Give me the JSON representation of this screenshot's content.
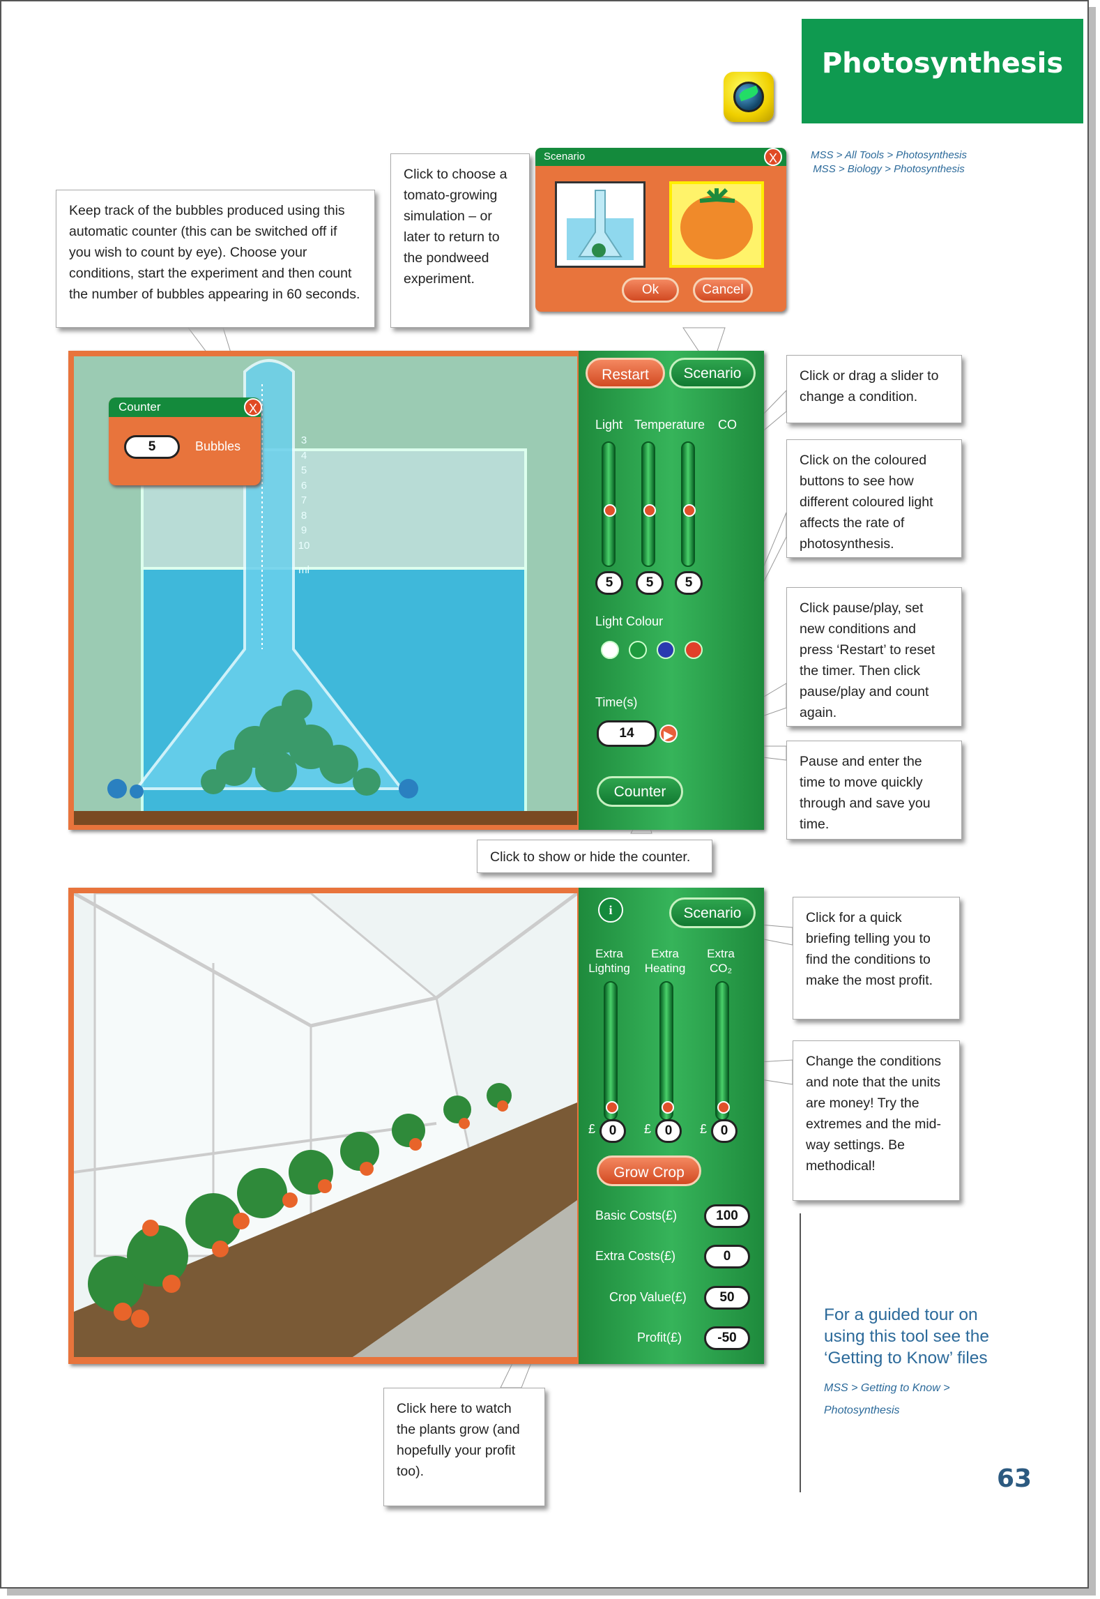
{
  "header": {
    "title": "Photosynthesis",
    "breadcrumb_1": "MSS > All Tools > Photosynthesis",
    "breadcrumb_2": "MSS > Biology > Photosynthesis"
  },
  "callouts": {
    "counter_info": "Keep track of the bubbles produced using this automatic counter (this can be switched off if you wish to count by eye). Choose your conditions, start the experiment and then count the number of bubbles appearing in 60 seconds.",
    "scenario_info": "Click to choose a tomato-growing simulation – or later to return to the pondweed experiment.",
    "slider_info": "Click or drag a slider to change a condition.",
    "colour_info": "Click on the coloured buttons to see how different coloured light affects the rate of photosynthesis.",
    "pause_info": "Click pause/play, set new conditions and press ‘Restart’ to reset the timer. Then click pause/play and count again.",
    "time_info": "Pause and enter the time to move quickly through and save you time.",
    "counter_toggle_info": "Click to show or hide the counter.",
    "briefing_info": "Click for a quick briefing telling you to find the conditions to make the most profit.",
    "conditions_info": "Change the conditions and note that the units are money! Try the extremes and the mid-way settings. Be methodical!",
    "grow_info": "Click here to watch the plants grow (and hopefully your profit too)."
  },
  "scenario_dialog": {
    "title": "Scenario",
    "ok_label": "Ok",
    "cancel_label": "Cancel",
    "close_label": "X"
  },
  "counter_widget": {
    "title": "Counter",
    "value": "5",
    "unit_label": "Bubbles",
    "close_label": "X"
  },
  "pondweed_sim": {
    "restart_label": "Restart",
    "scenario_label": "Scenario",
    "light_label": "Light",
    "temperature_label": "Temperature",
    "co2_label": "CO",
    "light_value": "5",
    "temperature_value": "5",
    "co2_value": "5",
    "light_colour_label": "Light Colour",
    "time_label": "Time(s)",
    "time_value": "14",
    "counter_label": "Counter",
    "tube_scale": [
      "3",
      "4",
      "5",
      "6",
      "7",
      "8",
      "9",
      "10"
    ],
    "tube_unit": "ml",
    "light_colours": [
      "#ffffff",
      "#1e9a3e",
      "#2a3ab0",
      "#e0402a"
    ]
  },
  "tomato_sim": {
    "info_label": "i",
    "scenario_label": "Scenario",
    "extra_lighting_label": "Extra\nLighting",
    "extra_heating_label": "Extra\nHeating",
    "extra_co2_label": "Extra\nCO₂",
    "currency": "£",
    "lighting_value": "0",
    "heating_value": "0",
    "co2_value": "0",
    "grow_label": "Grow Crop",
    "basic_costs_label": "Basic Costs(£)",
    "basic_costs_value": "100",
    "extra_costs_label": "Extra Costs(£)",
    "extra_costs_value": "0",
    "crop_value_label": "Crop Value(£)",
    "crop_value_value": "50",
    "profit_label": "Profit(£)",
    "profit_value": "-50"
  },
  "footer": {
    "guided_tour": "For a guided tour on using this tool see the ‘Getting to Know’ files",
    "guided_crumb": "MSS > Getting to Know > Photosynthesis",
    "page_number": "63"
  }
}
